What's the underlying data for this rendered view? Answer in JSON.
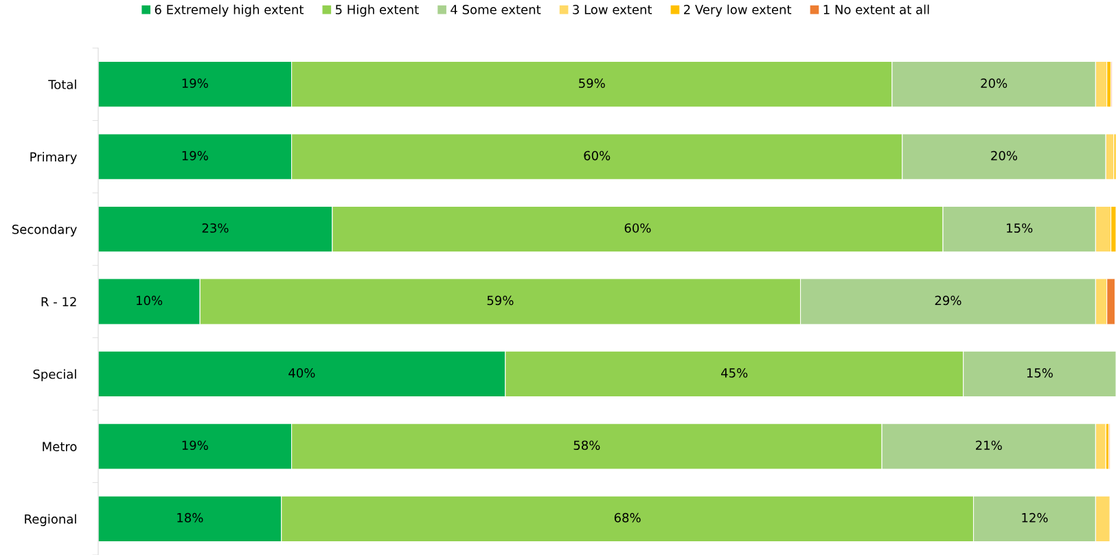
{
  "chart_data": {
    "type": "bar",
    "orientation": "horizontal",
    "stacked": true,
    "legend": "top",
    "grid": false,
    "categories": [
      "Total",
      "Primary",
      "Secondary",
      "R - 12",
      "Special",
      "Metro",
      "Regional"
    ],
    "series": [
      {
        "name": "6 Extremely high extent",
        "color": "#00b050",
        "values": [
          19,
          19,
          23,
          10,
          40,
          19,
          18
        ],
        "value_labels": [
          "19%",
          "19%",
          "23%",
          "10%",
          "40%",
          "19%",
          "18%"
        ]
      },
      {
        "name": "5 High extent",
        "color": "#92d050",
        "values": [
          59,
          60,
          60,
          59,
          45,
          58,
          68
        ],
        "value_labels": [
          "59%",
          "60%",
          "60%",
          "59%",
          "45%",
          "58%",
          "68%"
        ]
      },
      {
        "name": "4 Some extent",
        "color": "#a9d18e",
        "values": [
          20,
          20,
          15,
          29,
          15,
          21,
          12
        ],
        "value_labels": [
          "20%",
          "20%",
          "15%",
          "29%",
          "15%",
          "21%",
          "12%"
        ]
      },
      {
        "name": "3 Low extent",
        "color": "#ffd966",
        "values": [
          1.1,
          0.8,
          1.5,
          1.1,
          null,
          1.0,
          1.4
        ]
      },
      {
        "name": "2 Very low extent",
        "color": "#ffc000",
        "values": [
          0.4,
          0.2,
          0.5,
          null,
          null,
          0.3,
          null
        ]
      },
      {
        "name": "1 No extent at all",
        "color": "#ed7d31",
        "values": [
          0.1,
          null,
          null,
          0.8,
          null,
          0.1,
          null
        ]
      }
    ]
  }
}
